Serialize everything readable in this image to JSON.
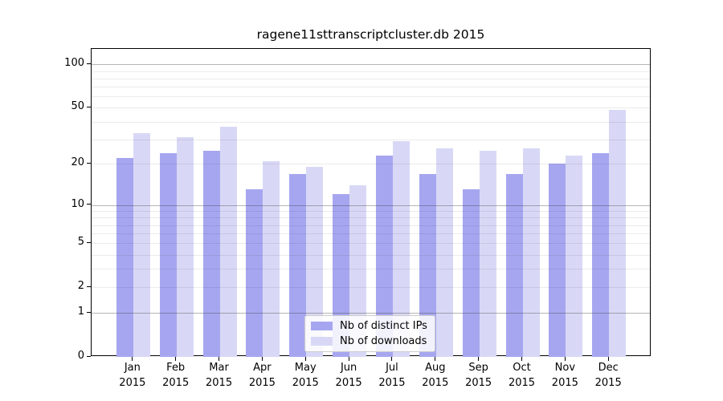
{
  "chart_data": {
    "type": "bar",
    "title": "ragene11sttranscriptcluster.db 2015",
    "categories": [
      "Jan",
      "Feb",
      "Mar",
      "Apr",
      "May",
      "Jun",
      "Jul",
      "Aug",
      "Sep",
      "Oct",
      "Nov",
      "Dec"
    ],
    "x_year": "2015",
    "series": [
      {
        "name": "Nb of distinct IPs",
        "color": "#a6a6f0",
        "values": [
          22,
          24,
          25,
          13,
          17,
          12,
          23,
          17,
          13,
          17,
          20,
          24
        ]
      },
      {
        "name": "Nb of downloads",
        "color": "#d8d8f6",
        "values": [
          33,
          31,
          37,
          21,
          19,
          14,
          29,
          26,
          25,
          26,
          23,
          48
        ]
      }
    ],
    "yscale": "log1p",
    "ylim": [
      0,
      128
    ],
    "yticks": [
      0,
      1,
      2,
      5,
      10,
      20,
      50,
      100
    ],
    "minor_gridlines": [
      2,
      3,
      4,
      5,
      6,
      7,
      8,
      9,
      20,
      30,
      40,
      50,
      60,
      70,
      80,
      90
    ],
    "major_gridlines": [
      1,
      10,
      100
    ],
    "grid": true,
    "legend_position": "lower center"
  }
}
